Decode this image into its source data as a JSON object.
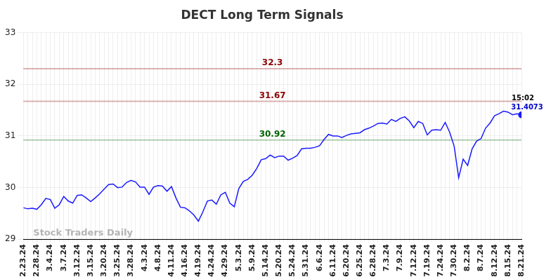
{
  "chart_data": {
    "type": "line",
    "title": "DECT Long Term Signals",
    "watermark": "Stock Traders Daily",
    "categories": [
      "2.23.24",
      null,
      null,
      "2.28.24",
      null,
      null,
      "3.4.24",
      null,
      null,
      "3.7.24",
      null,
      null,
      "3.12.24",
      null,
      null,
      "3.15.24",
      null,
      null,
      "3.20.24",
      null,
      null,
      "3.25.24",
      null,
      null,
      "3.28.24",
      null,
      null,
      "4.3.24",
      null,
      null,
      "4.8.24",
      null,
      null,
      "4.11.24",
      null,
      null,
      "4.16.24",
      null,
      null,
      "4.19.24",
      null,
      null,
      "4.24.24",
      null,
      null,
      "4.29.24",
      null,
      null,
      "5.3.24",
      null,
      null,
      "5.9.24",
      null,
      null,
      "5.14.24",
      null,
      null,
      "5.20.24",
      null,
      null,
      "5.24.24",
      null,
      null,
      "5.31.24",
      null,
      null,
      "6.6.24",
      null,
      null,
      "6.11.24",
      null,
      null,
      "6.20.24",
      null,
      null,
      "6.25.24",
      null,
      null,
      "6.28.24",
      null,
      null,
      "7.3.24",
      null,
      null,
      "7.9.24",
      null,
      null,
      "7.12.24",
      null,
      null,
      "7.19.24",
      null,
      null,
      "7.24.24",
      null,
      null,
      "7.30.24",
      null,
      null,
      "8.2.24",
      null,
      null,
      "8.7.24",
      null,
      null,
      "8.12.24",
      null,
      null,
      "8.15.24",
      null,
      null,
      "8.21.24"
    ],
    "values": [
      29.61,
      29.59,
      29.6,
      29.58,
      29.67,
      29.79,
      29.77,
      29.6,
      29.67,
      29.83,
      29.74,
      29.7,
      29.85,
      29.86,
      29.8,
      29.73,
      29.8,
      29.88,
      29.97,
      30.06,
      30.07,
      30.0,
      30.01,
      30.1,
      30.14,
      30.11,
      30.01,
      30.01,
      29.87,
      30.01,
      30.04,
      30.03,
      29.93,
      30.02,
      29.8,
      29.62,
      29.61,
      29.55,
      29.47,
      29.35,
      29.53,
      29.74,
      29.76,
      29.68,
      29.86,
      29.91,
      29.7,
      29.63,
      29.98,
      30.12,
      30.16,
      30.24,
      30.37,
      30.54,
      30.56,
      30.63,
      30.58,
      30.61,
      30.61,
      30.53,
      30.57,
      30.62,
      30.75,
      30.76,
      30.76,
      30.78,
      30.81,
      30.93,
      31.03,
      31.0,
      31.0,
      30.97,
      31.01,
      31.04,
      31.05,
      31.06,
      31.12,
      31.15,
      31.19,
      31.24,
      31.25,
      31.23,
      31.32,
      31.28,
      31.34,
      31.37,
      31.29,
      31.16,
      31.28,
      31.24,
      31.02,
      31.11,
      31.12,
      31.11,
      31.26,
      31.07,
      30.8,
      30.19,
      30.55,
      30.43,
      30.75,
      30.9,
      30.95,
      31.15,
      31.25,
      31.39,
      31.43,
      31.48,
      31.46,
      31.41,
      31.43,
      31.4073
    ],
    "color": "#1a1aff",
    "ylim": [
      29,
      33
    ],
    "yticks": [
      29,
      30,
      31,
      32,
      33
    ],
    "grid": true,
    "annotations": [
      {
        "value": 32.3,
        "label": "32.3",
        "color": "#8b0000"
      },
      {
        "value": 31.67,
        "label": "31.67",
        "color": "#8b0000"
      },
      {
        "value": 30.92,
        "label": "30.92",
        "color": "#006400"
      }
    ],
    "end_label": {
      "time": "15:02",
      "value": 31.4073
    }
  }
}
